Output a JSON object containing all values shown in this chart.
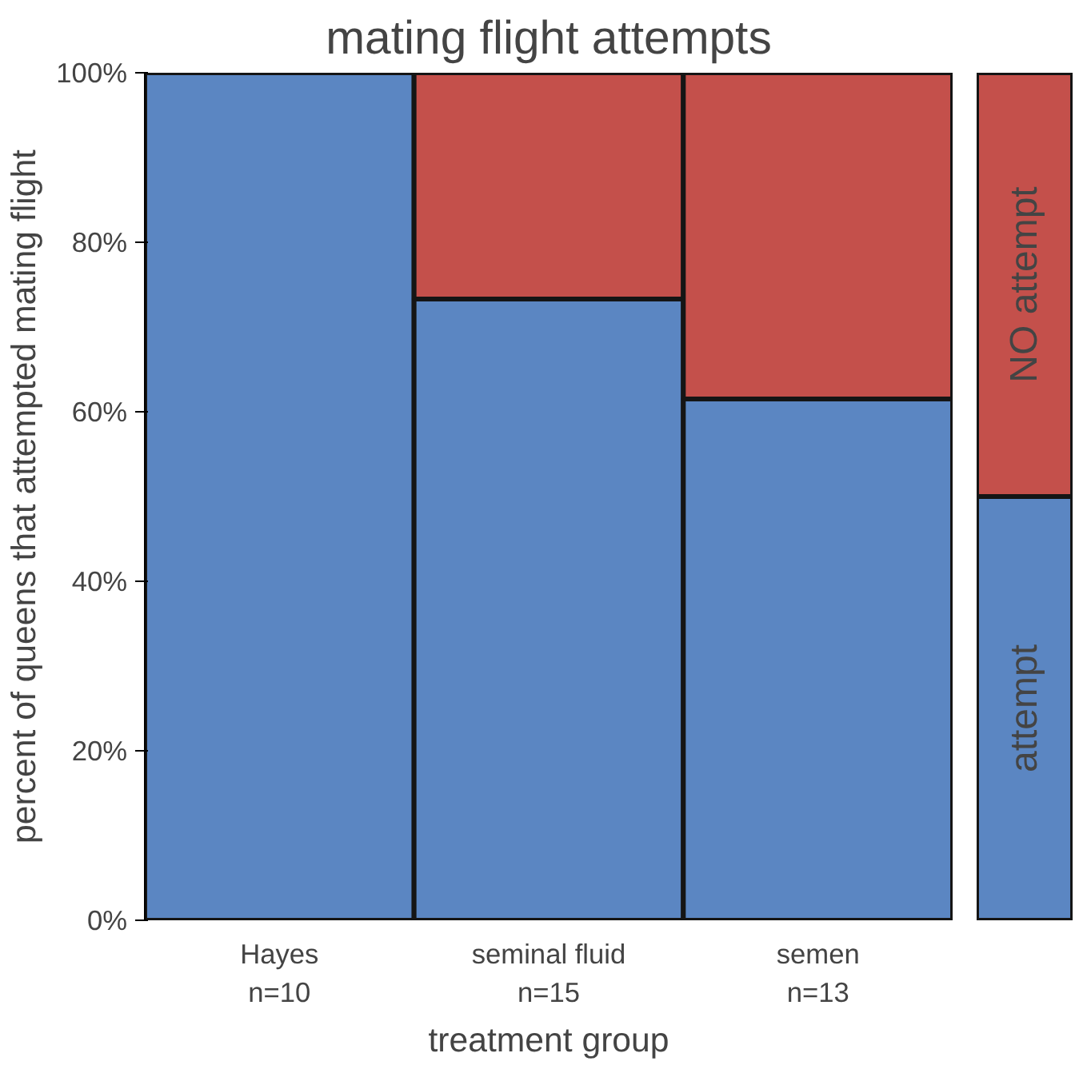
{
  "chart_data": {
    "type": "bar",
    "title": "mating flight attempts",
    "xlabel": "treatment group",
    "ylabel": "percent of queens that attempted mating flight",
    "categories": [
      "Hayes\nn=10",
      "seminal fluid\nn=15",
      "semen\nn=13"
    ],
    "series": [
      {
        "name": "attempt",
        "color": "#5b86c2",
        "values": [
          100,
          73.3,
          61.5
        ]
      },
      {
        "name": "NO attempt",
        "color": "#c4504b",
        "values": [
          0,
          26.7,
          38.5
        ]
      }
    ],
    "stacked": true,
    "ylim": [
      0,
      100
    ],
    "yticks": [
      {
        "value": 0,
        "label": "0%"
      },
      {
        "value": 20,
        "label": "20%"
      },
      {
        "value": 40,
        "label": "40%"
      },
      {
        "value": 60,
        "label": "60%"
      },
      {
        "value": 80,
        "label": "80%"
      },
      {
        "value": 100,
        "label": "100%"
      }
    ],
    "legend": "right"
  }
}
